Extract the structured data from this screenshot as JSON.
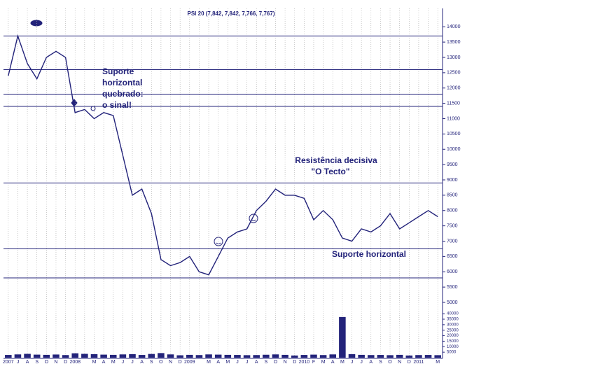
{
  "chart_data": {
    "type": "line",
    "title": "PSI 20 (7,842, 7,842, 7,766, 7,767)",
    "categories": [
      "2007",
      "J",
      "A",
      "S",
      "O",
      "N",
      "D",
      "2008",
      null,
      "M",
      "A",
      "M",
      "J",
      "J",
      "A",
      "S",
      "O",
      "N",
      "D",
      "2009",
      null,
      "M",
      "A",
      "M",
      "J",
      "J",
      "A",
      "S",
      "O",
      "N",
      "D",
      "2010",
      "F",
      "M",
      "A",
      "M",
      "J",
      "J",
      "A",
      "S",
      "O",
      "N",
      "D",
      "2011",
      null,
      "M"
    ],
    "values": [
      12400,
      13700,
      12800,
      12300,
      13000,
      13200,
      13000,
      11200,
      11300,
      11000,
      11200,
      11100,
      9800,
      8500,
      8700,
      7900,
      6400,
      6200,
      6300,
      6500,
      6000,
      5900,
      6500,
      7100,
      7300,
      7400,
      8000,
      8300,
      8700,
      8500,
      8500,
      8400,
      7700,
      8000,
      7700,
      7100,
      7000,
      7400,
      7300,
      7500,
      7900,
      7400,
      7600,
      7800,
      8000,
      7800
    ],
    "color": "#23237a",
    "ylim": [
      5000,
      14600
    ],
    "yticks": [
      5000,
      5500,
      6000,
      6500,
      7000,
      7500,
      8000,
      8500,
      9000,
      9500,
      10000,
      10500,
      11000,
      11500,
      12000,
      12500,
      13000,
      13500,
      14000
    ],
    "levels": [
      13700,
      12600,
      11800,
      11400,
      8900,
      6750,
      5800
    ],
    "volume": [
      2500,
      3000,
      3500,
      2800,
      2600,
      2900,
      2400,
      4000,
      3500,
      3200,
      2800,
      2600,
      3000,
      3200,
      2500,
      3400,
      4200,
      3000,
      2200,
      2600,
      2400,
      3000,
      2800,
      2600,
      2500,
      2300,
      2400,
      2700,
      3000,
      2600,
      2000,
      2500,
      2800,
      2400,
      3000,
      37000,
      3200,
      2600,
      2400,
      2500,
      2300,
      2600,
      2000,
      2400,
      2500,
      2300
    ],
    "volume_ylim": [
      0,
      42000
    ],
    "volume_yticks": [
      5000,
      10000,
      15000,
      20000,
      25000,
      30000,
      35000,
      40000
    ],
    "annotations": [
      "Suporte",
      "horizontal",
      "quebrado:",
      "o sinal!",
      "Resistência decisiva",
      "\"O Tecto\"",
      "Suporte horizontal"
    ],
    "grid": true
  }
}
